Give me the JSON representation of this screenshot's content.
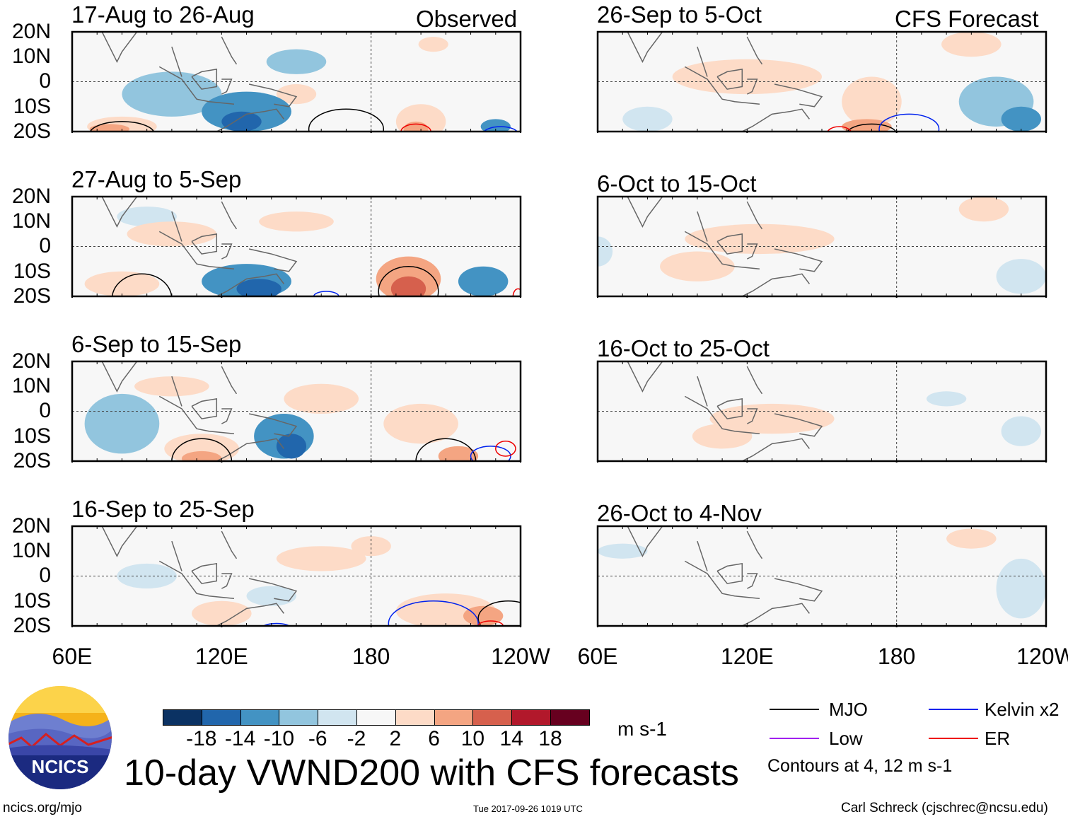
{
  "title": "10-day VWND200 with CFS forecasts",
  "observed_label": "Observed",
  "forecast_label": "CFS Forecast",
  "y_ticks": [
    "20N",
    "10N",
    "0",
    "10S",
    "20S"
  ],
  "x_ticks": [
    "60E",
    "120E",
    "180",
    "120W"
  ],
  "colorbar": {
    "unit": "m s-1",
    "ticks": [
      "-18",
      "-14",
      "-10",
      "-6",
      "-2",
      "2",
      "6",
      "10",
      "14",
      "18"
    ],
    "colors": [
      "#0b3263",
      "#2166ac",
      "#4393c3",
      "#92c5de",
      "#d1e5f0",
      "#f7f7f7",
      "#fddbc7",
      "#f4a582",
      "#d6604d",
      "#b2182b",
      "#67001f"
    ]
  },
  "legend": {
    "mjo": "MJO",
    "kelvin": "Kelvin x2",
    "low": "Low",
    "er": "ER",
    "note": "Contours at 4, 12 m s-1",
    "colors": {
      "mjo": "#000000",
      "kelvin": "#0022ee",
      "low": "#a020f0",
      "er": "#ee0000"
    }
  },
  "footer": {
    "url": "ncics.org/mjo",
    "timestamp": "Tue 2017-09-26 1019 UTC",
    "credit": "Carl Schreck (cjschrec@ncsu.edu)",
    "logo_text": "NCICS"
  },
  "chart_data": {
    "type": "heatmap",
    "lon_range": [
      60,
      240
    ],
    "lat_range": [
      -20,
      20
    ],
    "panels": [
      {
        "title": "17-Aug to 26-Aug",
        "kind": "observed",
        "anoms": [
          [
            100,
            -5,
            20,
            9,
            -6
          ],
          [
            130,
            -12,
            18,
            8,
            -10
          ],
          [
            128,
            -16,
            8,
            4,
            -14
          ],
          [
            150,
            8,
            12,
            5,
            -6
          ],
          [
            80,
            -18,
            14,
            4,
            6
          ],
          [
            75,
            -19,
            8,
            2,
            10
          ],
          [
            200,
            -16,
            10,
            7,
            6
          ],
          [
            198,
            -19,
            5,
            3,
            10
          ],
          [
            230,
            -18,
            6,
            3,
            -10
          ],
          [
            150,
            -5,
            8,
            4,
            6
          ],
          [
            205,
            15,
            6,
            3,
            6
          ]
        ],
        "mjo": [
          [
            80,
            -21,
            13,
            5
          ],
          [
            170,
            -19,
            15,
            8
          ]
        ],
        "kelvin": [
          [
            232,
            -21,
            7,
            3
          ],
          [
            160,
            -21,
            5,
            1
          ]
        ],
        "er": [
          [
            198,
            -20,
            6,
            3
          ]
        ]
      },
      {
        "title": "27-Aug to 5-Sep",
        "kind": "observed",
        "anoms": [
          [
            130,
            -14,
            18,
            7,
            -10
          ],
          [
            135,
            -17,
            9,
            4,
            -14
          ],
          [
            195,
            -13,
            13,
            9,
            10
          ],
          [
            195,
            -17,
            7,
            5,
            14
          ],
          [
            80,
            -15,
            15,
            5,
            6
          ],
          [
            100,
            5,
            18,
            5,
            6
          ],
          [
            150,
            10,
            15,
            4,
            6
          ],
          [
            225,
            -14,
            10,
            6,
            -10
          ],
          [
            90,
            12,
            12,
            4,
            -2
          ]
        ],
        "mjo": [
          [
            88,
            -21,
            12,
            10
          ],
          [
            195,
            -18,
            12,
            10
          ]
        ],
        "kelvin": [
          [
            162,
            -20,
            5,
            2
          ]
        ],
        "er": [
          [
            239,
            -20,
            2,
            3
          ]
        ]
      },
      {
        "title": "6-Sep to 15-Sep",
        "kind": "observed",
        "anoms": [
          [
            145,
            -10,
            12,
            9,
            -10
          ],
          [
            148,
            -14,
            6,
            5,
            -14
          ],
          [
            112,
            -15,
            15,
            6,
            6
          ],
          [
            112,
            -19,
            8,
            3,
            10
          ],
          [
            80,
            -5,
            15,
            12,
            -6
          ],
          [
            160,
            5,
            15,
            6,
            6
          ],
          [
            200,
            -5,
            15,
            8,
            6
          ],
          [
            215,
            -18,
            8,
            4,
            10
          ],
          [
            100,
            10,
            15,
            4,
            6
          ]
        ],
        "mjo": [
          [
            112,
            -20,
            12,
            9
          ],
          [
            210,
            -20,
            12,
            9
          ]
        ],
        "kelvin": [
          [
            228,
            -18,
            8,
            4
          ]
        ],
        "er": [
          [
            234,
            -15,
            4,
            3
          ]
        ]
      },
      {
        "title": "16-Sep to 25-Sep",
        "kind": "observed",
        "anoms": [
          [
            120,
            -15,
            12,
            5,
            6
          ],
          [
            210,
            -14,
            20,
            7,
            6
          ],
          [
            225,
            -16,
            8,
            4,
            10
          ],
          [
            160,
            7,
            18,
            5,
            6
          ],
          [
            180,
            12,
            8,
            4,
            6
          ],
          [
            140,
            -8,
            10,
            4,
            -2
          ],
          [
            90,
            0,
            12,
            5,
            -2
          ]
        ],
        "mjo": [
          [
            235,
            -17,
            12,
            7
          ]
        ],
        "kelvin": [
          [
            205,
            -19,
            18,
            9
          ],
          [
            142,
            -21,
            6,
            2
          ]
        ],
        "er": [
          [
            228,
            -20,
            5,
            2
          ]
        ]
      },
      {
        "title": "26-Sep to 5-Oct",
        "kind": "forecast",
        "anoms": [
          [
            120,
            2,
            30,
            7,
            6
          ],
          [
            170,
            -8,
            12,
            10,
            6
          ],
          [
            168,
            -18,
            10,
            3,
            10
          ],
          [
            220,
            -8,
            15,
            10,
            -6
          ],
          [
            230,
            -15,
            8,
            5,
            -10
          ],
          [
            210,
            15,
            12,
            5,
            6
          ],
          [
            80,
            -15,
            10,
            5,
            -2
          ]
        ],
        "mjo": [
          [
            170,
            -21,
            10,
            4
          ]
        ],
        "kelvin": [
          [
            185,
            -19,
            12,
            6
          ]
        ],
        "er": [
          [
            157,
            -21,
            5,
            3
          ]
        ]
      },
      {
        "title": "6-Oct to 15-Oct",
        "kind": "forecast",
        "anoms": [
          [
            125,
            3,
            30,
            6,
            6
          ],
          [
            100,
            -8,
            15,
            6,
            6
          ],
          [
            215,
            15,
            10,
            5,
            6
          ],
          [
            230,
            -12,
            10,
            7,
            -2
          ],
          [
            60,
            -2,
            6,
            6,
            -2
          ]
        ],
        "mjo": [],
        "kelvin": [],
        "er": []
      },
      {
        "title": "16-Oct to 25-Oct",
        "kind": "forecast",
        "anoms": [
          [
            130,
            -3,
            25,
            6,
            6
          ],
          [
            110,
            -10,
            12,
            5,
            6
          ],
          [
            200,
            5,
            8,
            3,
            -2
          ],
          [
            230,
            -8,
            8,
            6,
            -2
          ]
        ],
        "mjo": [],
        "kelvin": [
          [
            188,
            -21,
            4,
            1
          ]
        ],
        "er": []
      },
      {
        "title": "26-Oct to 4-Nov",
        "kind": "forecast",
        "anoms": [
          [
            230,
            -5,
            10,
            12,
            -2
          ],
          [
            210,
            15,
            10,
            4,
            6
          ],
          [
            70,
            10,
            10,
            3,
            -2
          ]
        ],
        "mjo": [],
        "kelvin": [],
        "er": []
      }
    ]
  }
}
